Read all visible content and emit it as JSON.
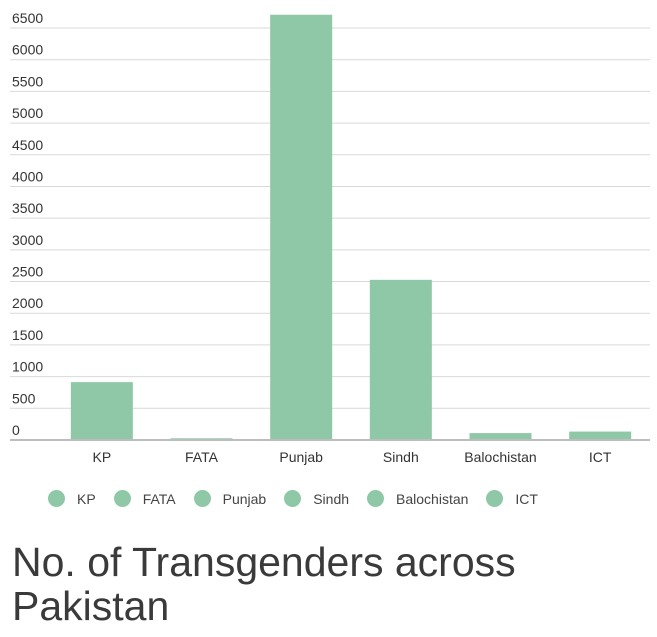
{
  "chart_data": {
    "type": "bar",
    "title": "No. of Transgenders across Pakistan",
    "categories": [
      "KP",
      "FATA",
      "Punjab",
      "Sindh",
      "Balochistan",
      "ICT"
    ],
    "values": [
      913,
      27,
      6709,
      2527,
      109,
      133
    ],
    "ylim": [
      0,
      6500
    ],
    "yticks": [
      0,
      500,
      1000,
      1500,
      2000,
      2500,
      3000,
      3500,
      4000,
      4500,
      5000,
      5500,
      6000,
      6500
    ],
    "grid": true,
    "legend_position": "bottom",
    "bar_color": "#8fc8a6",
    "grid_color": "#d9d9d9",
    "axis_color": "#bdbdbd"
  }
}
